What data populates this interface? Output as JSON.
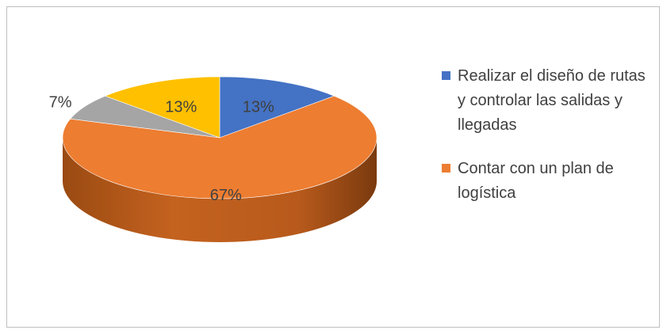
{
  "chart_data": {
    "type": "pie",
    "three_d": true,
    "title": "",
    "slices": [
      {
        "name": "Realizar el diseño de rutas y controlar las salidas y llegadas",
        "value": 13,
        "label": "13%",
        "color": "#4472C4",
        "in_legend": true
      },
      {
        "name": "Contar con un plan de logística",
        "value": 67,
        "label": "67%",
        "color": "#ED7D31",
        "in_legend": true
      },
      {
        "name": "",
        "value": 7,
        "label": "7%",
        "color": "#A5A5A5",
        "in_legend": false
      },
      {
        "name": "",
        "value": 13,
        "label": "13%",
        "color": "#FFC000",
        "in_legend": false
      }
    ],
    "legend": {
      "position": "right",
      "entries": [
        {
          "label": "Realizar el diseño de rutas y controlar las salidas y llegadas",
          "color": "#4472C4"
        },
        {
          "label": "Contar con un plan de logística",
          "color": "#ED7D31"
        }
      ]
    }
  }
}
